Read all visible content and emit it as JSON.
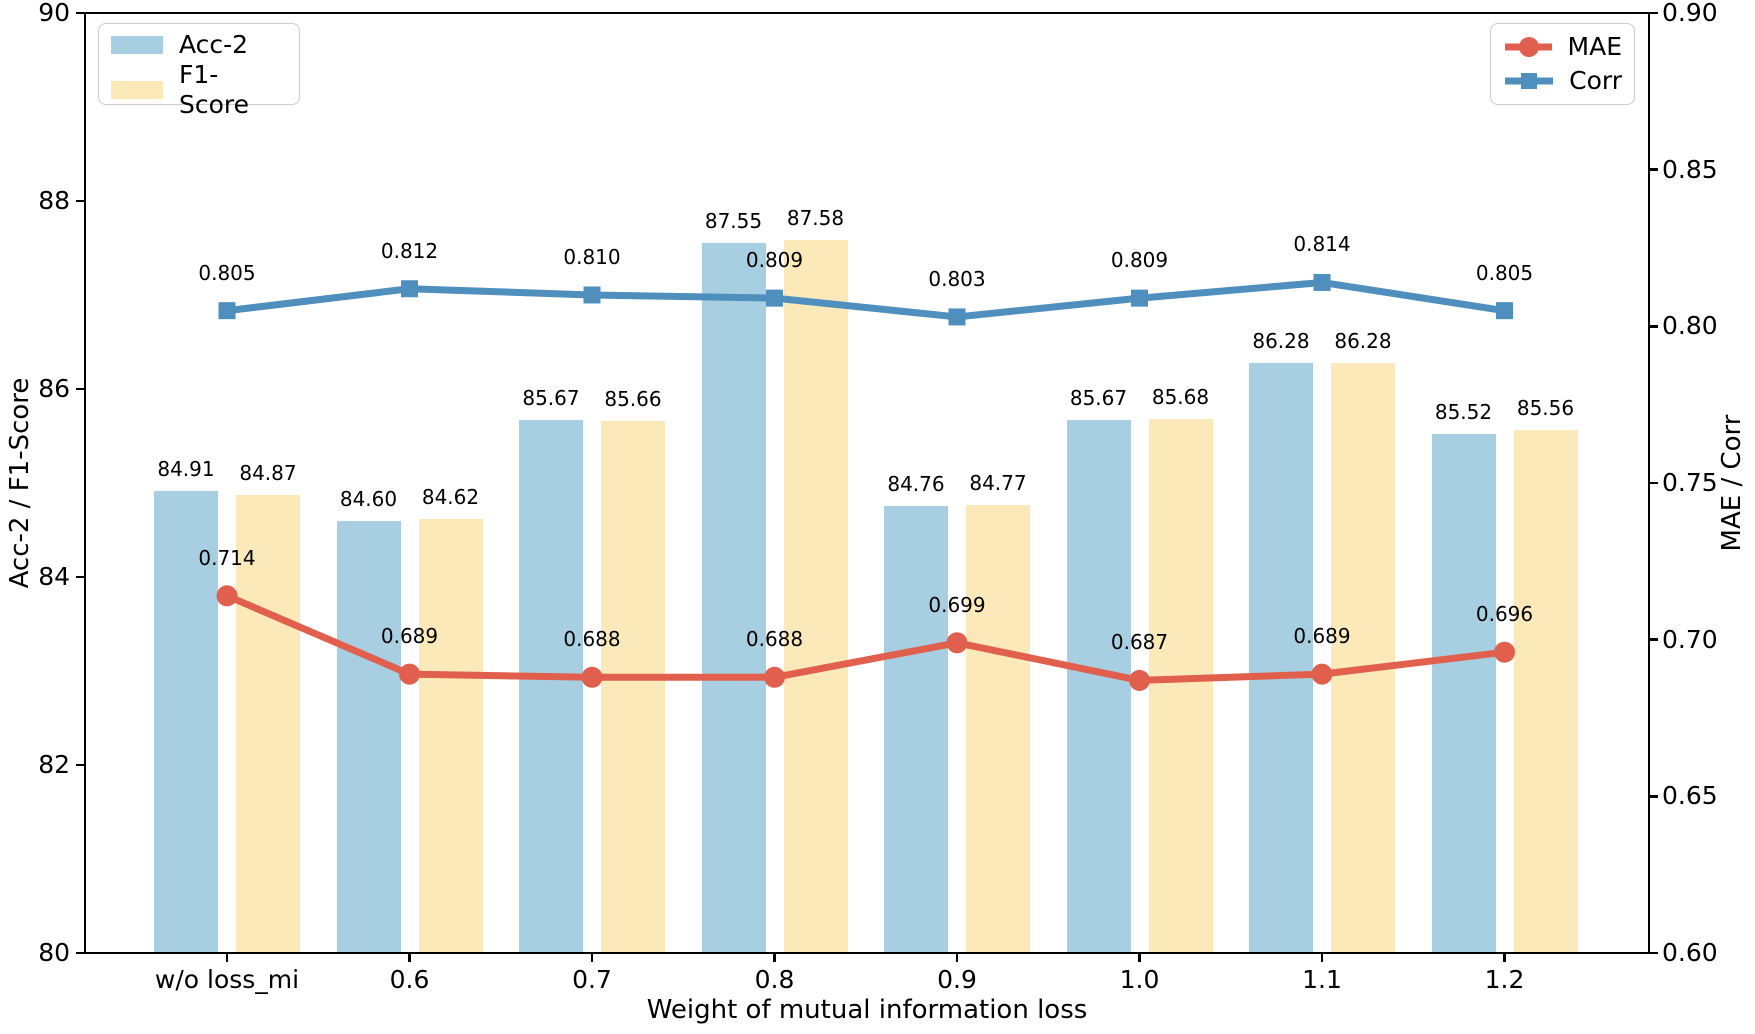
{
  "figure": {
    "x_axis": {
      "label": "Weight of mutual information loss",
      "tick_labels": [
        "w/o loss_mi",
        "0.6",
        "0.7",
        "0.8",
        "0.9",
        "1.0",
        "1.1",
        "1.2"
      ]
    },
    "left_axis": {
      "label": "Acc-2 / F1-Score",
      "tick_labels": [
        "80",
        "82",
        "84",
        "86",
        "88",
        "90"
      ]
    },
    "right_axis": {
      "label": "MAE / Corr",
      "tick_labels": [
        "0.60",
        "0.65",
        "0.70",
        "0.75",
        "0.80",
        "0.85",
        "0.90"
      ]
    },
    "legend_left_items": [
      "Acc-2",
      "F1-Score"
    ],
    "legend_right_items": [
      "MAE",
      "Corr"
    ]
  },
  "colors": {
    "bar_acc2": "#a8cee1",
    "bar_f1": "#fce9ba",
    "line_mae": "#e0604d",
    "line_corr": "#4e8fbd",
    "axis": "#000000",
    "legend_border": "#cccccc"
  },
  "chart_data": {
    "type": "bar",
    "subtype": "grouped-bars-with-lines",
    "categories": [
      "w/o loss_mi",
      "0.6",
      "0.7",
      "0.8",
      "0.9",
      "1.0",
      "1.1",
      "1.2"
    ],
    "series": [
      {
        "name": "Acc-2",
        "type": "bar",
        "axis": "left",
        "color": "#a8cee1",
        "values": [
          84.91,
          84.6,
          85.67,
          87.55,
          84.76,
          85.67,
          86.28,
          85.52
        ]
      },
      {
        "name": "F1-Score",
        "type": "bar",
        "axis": "left",
        "color": "#fce9ba",
        "values": [
          84.87,
          84.62,
          85.66,
          87.58,
          84.77,
          85.68,
          86.28,
          85.56
        ]
      },
      {
        "name": "MAE",
        "type": "line",
        "axis": "right",
        "marker": "circle",
        "color": "#e0604d",
        "values": [
          0.714,
          0.689,
          0.688,
          0.688,
          0.699,
          0.687,
          0.689,
          0.696
        ]
      },
      {
        "name": "Corr",
        "type": "line",
        "axis": "right",
        "marker": "square",
        "color": "#4e8fbd",
        "values": [
          0.805,
          0.812,
          0.81,
          0.809,
          0.803,
          0.809,
          0.814,
          0.805
        ]
      }
    ],
    "title": "",
    "xlabel": "Weight of mutual information loss",
    "ylabel_left": "Acc-2 / F1-Score",
    "ylabel_right": "MAE / Corr",
    "ylim_left": [
      80,
      90
    ],
    "ylim_right": [
      0.6,
      0.9
    ],
    "yticks_left": [
      80,
      82,
      84,
      86,
      88,
      90
    ],
    "yticks_right": [
      0.6,
      0.65,
      0.7,
      0.75,
      0.8,
      0.85,
      0.9
    ],
    "grid": false,
    "legend_positions": {
      "bars": "upper left",
      "lines": "upper right"
    },
    "bar_value_labels_decimals": 2,
    "line_value_labels_decimals": 3
  }
}
